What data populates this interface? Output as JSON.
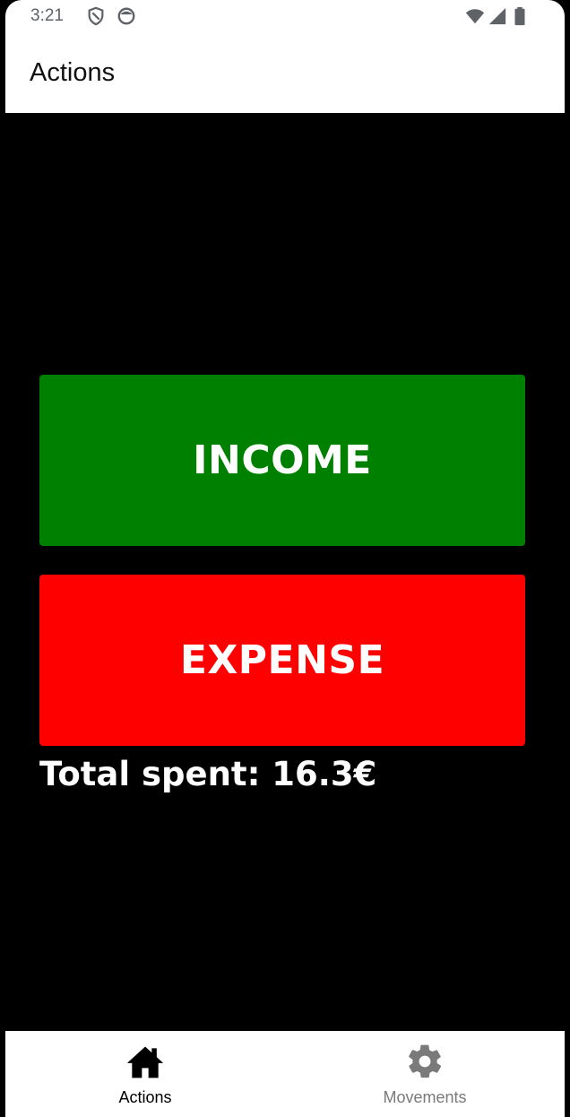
{
  "status_bar": {
    "time": "3:21",
    "left_icons": [
      "shield-icon",
      "face-icon"
    ],
    "right_icons": [
      "wifi-icon",
      "signal-icon",
      "battery-icon"
    ]
  },
  "app_bar": {
    "title": "Actions"
  },
  "actions": {
    "income_label": "INCOME",
    "expense_label": "EXPENSE",
    "income_color": "#008000",
    "expense_color": "#ff0000"
  },
  "summary": {
    "total_spent_text": "Total spent: 16.3€"
  },
  "bottom_nav": {
    "items": [
      {
        "label": "Actions",
        "icon": "home-icon",
        "active": true
      },
      {
        "label": "Movements",
        "icon": "gear-icon",
        "active": false
      }
    ]
  }
}
